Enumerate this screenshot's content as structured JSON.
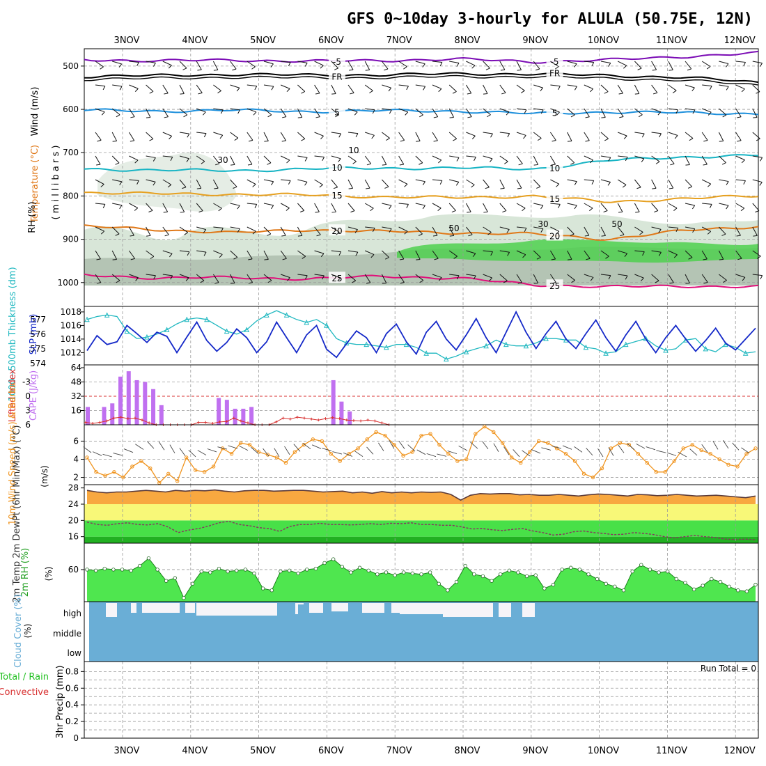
{
  "title": "GFS 0~10day 3-hourly for ALULA (50.75E, 12N)",
  "colors": {
    "purple": "#7b0cb5",
    "black": "#000000",
    "blue": "#1e90dc",
    "cyan": "#17b4c4",
    "orange_15": "#e6a020",
    "orange_20": "#e07818",
    "magenta": "#e0107a",
    "slp": "#1428c8",
    "thickness": "#20b8c0",
    "cape": "#c070f0",
    "li": "#d83030",
    "wind_speed": "#f0941e",
    "temp_fill": "#f8a840",
    "dew_band": "#f8f878",
    "green_band": "#48e048",
    "dark_green_band": "#22b022",
    "rh_fill": "#4fe64f",
    "cloud": "#6aaed6",
    "cloud_clear": "#f6f4f8",
    "humid_shade": "#c8dcc8"
  },
  "chart_data": [
    {
      "type": "contour",
      "panel": "upper-air",
      "ylabel_wind": "Wind (m/s)",
      "ylabel_temperature": "Temperature (°C)",
      "ylabel_rh": "RH (%)",
      "ylabel_pressure": "( m i l l i b a r s )",
      "yticks": [
        "500",
        "600",
        "700",
        "800",
        "900",
        "1000"
      ],
      "ylim": [
        460,
        1010
      ],
      "x_dates": [
        "3NOV",
        "4NOV",
        "5NOV",
        "6NOV",
        "7NOV",
        "8NOV",
        "9NOV",
        "10NOV",
        "11NOV",
        "12NOV"
      ],
      "isotherms": [
        {
          "label": "-5",
          "value": -5,
          "levels": [
            485,
            488,
            486,
            489,
            487,
            484,
            490,
            486,
            478,
            470
          ]
        },
        {
          "label": "FR",
          "value": 0,
          "levels": [
            524,
            522,
            519,
            521,
            520,
            518,
            518,
            522,
            526,
            538
          ]
        },
        {
          "label": "5",
          "value": 5,
          "levels": [
            602,
            604,
            602,
            605,
            603,
            604,
            610,
            606,
            608,
            610
          ]
        },
        {
          "label": "10",
          "value": 10,
          "levels": [
            738,
            740,
            742,
            737,
            736,
            735,
            738,
            718,
            710,
            706
          ]
        },
        {
          "label": "15",
          "value": 15,
          "levels": [
            792,
            795,
            796,
            798,
            802,
            804,
            800,
            814,
            806,
            800
          ]
        },
        {
          "label": "20",
          "value": 20,
          "levels": [
            870,
            878,
            885,
            878,
            882,
            885,
            888,
            900,
            880,
            870
          ]
        },
        {
          "label": "25",
          "value": 25,
          "levels": [
            982,
            990,
            988,
            992,
            985,
            990,
            1005,
            1010,
            1008,
            1010
          ]
        }
      ],
      "rh_contour_labels": [
        "10",
        "30",
        "50",
        "30",
        "50"
      ]
    },
    {
      "type": "line",
      "panel": "slp-thickness",
      "ylabel_left": "1000~500mb Thickness (dm)",
      "ylabel_right": "SLP (mb)",
      "yticks_left": [
        "574",
        "575",
        "576",
        "577"
      ],
      "yticks_right": [
        "1012",
        "1014",
        "1016",
        "1018"
      ],
      "ylim_left": [
        574,
        577.7
      ],
      "ylim_right": [
        1010.4,
        1018.4
      ],
      "series": [
        {
          "name": "SLP (mb)",
          "values": [
            1012.3,
            1014.5,
            1013.2,
            1013.6,
            1016.0,
            1014.8,
            1013.5,
            1015.0,
            1014.4,
            1012.0,
            1014.3,
            1016.5,
            1013.8,
            1012.2,
            1013.5,
            1015.5,
            1014.2,
            1012.0,
            1013.6,
            1016.5,
            1014.2,
            1012.0,
            1014.6,
            1016.0,
            1012.5,
            1011.3,
            1013.3,
            1015.2,
            1014.2,
            1012.0,
            1014.8,
            1016.2,
            1013.6,
            1011.8,
            1015.0,
            1016.6,
            1014.0,
            1012.4,
            1014.6,
            1017.0,
            1014.2,
            1012.0,
            1015.0,
            1018.0,
            1015.0,
            1012.6,
            1014.8,
            1016.6,
            1014.0,
            1012.6,
            1014.8,
            1016.8,
            1014.2,
            1012.2,
            1014.6,
            1016.6,
            1014.0,
            1012.0,
            1014.2,
            1016.0,
            1014.0,
            1012.2,
            1013.8,
            1015.6,
            1013.4,
            1012.4,
            1014.0,
            1015.6
          ]
        },
        {
          "name": "1000-500mb Thickness (dm)",
          "values": [
            577.0,
            577.2,
            577.3,
            577.2,
            576.2,
            575.7,
            575.8,
            576.0,
            576.3,
            576.7,
            577.0,
            577.1,
            577.0,
            576.6,
            576.2,
            576.0,
            576.3,
            576.9,
            577.3,
            577.6,
            577.3,
            577.0,
            576.8,
            577.0,
            576.6,
            575.7,
            575.4,
            575.3,
            575.3,
            575.2,
            575.1,
            575.3,
            575.3,
            575.1,
            574.7,
            574.7,
            574.3,
            574.5,
            574.8,
            575.0,
            575.2,
            575.6,
            575.3,
            575.2,
            575.2,
            575.4,
            575.7,
            575.7,
            575.6,
            575.6,
            575.1,
            575.0,
            574.7,
            574.8,
            575.3,
            575.5,
            575.7,
            575.2,
            574.9,
            575.0,
            575.6,
            575.7,
            575.0,
            574.8,
            575.3,
            575.1,
            574.7,
            574.8
          ]
        }
      ]
    },
    {
      "type": "bar",
      "panel": "cape-li",
      "ylabel_left": "Lifted Index",
      "ylabel_right": "CAPE (J/kg)",
      "yticks_left": [
        "-3",
        "0",
        "3",
        "6"
      ],
      "yticks_right": [
        "16",
        "32",
        "48",
        "64"
      ],
      "ylim_right": [
        0,
        64
      ],
      "ylim_left": [
        -6,
        6
      ],
      "series": [
        {
          "name": "CAPE (J/kg)",
          "values": [
            20,
            0,
            20,
            24,
            54,
            60,
            50,
            48,
            40,
            22,
            0,
            0,
            0,
            0,
            0,
            0,
            30,
            28,
            18,
            18,
            20,
            0,
            0,
            0,
            0,
            0,
            0,
            0,
            0,
            0,
            50,
            26,
            15,
            0,
            0,
            0,
            0,
            0,
            0,
            0,
            0,
            0,
            0,
            0,
            0,
            0,
            0,
            0,
            0,
            0,
            0,
            0,
            0,
            0,
            0,
            0,
            0,
            0,
            0,
            0,
            0,
            0,
            0,
            0,
            0,
            0,
            0,
            0,
            0,
            0,
            0,
            0,
            0,
            0,
            0,
            0,
            0,
            0,
            0,
            0,
            0,
            0
          ]
        },
        {
          "name": "Lifted Index",
          "values": [
            5.5,
            5.7,
            5.5,
            5.2,
            4.6,
            4.4,
            4.7,
            4.6,
            5.0,
            5.6,
            6.0,
            6.0,
            6.0,
            6.0,
            6.0,
            6.0,
            5.5,
            5.5,
            5.7,
            5.4,
            5.3,
            4.6,
            5.2,
            5.6,
            6.0,
            6.0,
            6.0,
            5.4,
            4.6,
            4.8,
            4.4,
            4.6,
            4.8,
            5.0,
            4.7,
            4.5,
            4.7,
            5.0,
            5.1,
            5.2,
            5.0,
            5.2,
            5.6,
            6.0
          ]
        }
      ]
    },
    {
      "type": "line",
      "panel": "wind",
      "ylabel": "10m Wind Speed (m/s) & Barbs",
      "yticks": [
        "2",
        "4",
        "6"
      ],
      "ylim": [
        1.2,
        7.8
      ],
      "series": [
        {
          "name": "Wind Speed (m/s)",
          "values": [
            4.2,
            2.6,
            2.2,
            2.6,
            2.0,
            3.2,
            3.8,
            3.0,
            1.4,
            2.4,
            1.6,
            4.2,
            2.8,
            2.6,
            3.2,
            5.2,
            4.6,
            5.8,
            5.6,
            4.8,
            4.5,
            4.2,
            3.6,
            4.8,
            5.6,
            6.2,
            6.0,
            4.6,
            3.8,
            4.6,
            5.2,
            6.2,
            7.0,
            6.6,
            5.6,
            4.4,
            4.8,
            6.6,
            6.8,
            5.6,
            4.6,
            3.8,
            4.0,
            6.8,
            7.6,
            7.0,
            5.8,
            4.2,
            3.6,
            4.8,
            6.0,
            5.8,
            5.2,
            4.6,
            3.8,
            2.4,
            2.0,
            3.0,
            5.2,
            5.8,
            5.6,
            4.6,
            3.6,
            2.6,
            2.6,
            3.8,
            5.2,
            5.6,
            5.0,
            4.6,
            4.0,
            3.4,
            3.2,
            4.6,
            5.2
          ]
        }
      ]
    },
    {
      "type": "area",
      "panel": "temperature",
      "ylabel": "2m Temp 2m DewPt (6hr Min/Max) (°C)",
      "yticks": [
        "16",
        "20",
        "24",
        "28"
      ],
      "ylim": [
        14.4,
        28.8
      ],
      "series": [
        {
          "name": "2m Temp",
          "values": [
            27.4,
            27.0,
            26.8,
            27.0,
            27.0,
            27.2,
            27.4,
            27.2,
            27.0,
            27.4,
            27.2,
            27.4,
            27.3,
            27.5,
            27.2,
            27.0,
            27.3,
            27.4,
            27.4,
            27.2,
            27.3,
            27.4,
            27.4,
            27.2,
            27.0,
            27.1,
            27.2,
            26.8,
            27.0,
            26.7,
            27.1,
            26.8,
            27.0,
            26.8,
            27.0,
            26.9,
            27.0,
            26.4,
            25.0,
            26.2,
            26.6,
            26.5,
            26.6,
            26.6,
            26.3,
            26.4,
            26.2,
            26.2,
            26.4,
            26.2,
            26.0,
            26.3,
            26.5,
            26.4,
            26.2,
            26.0,
            26.4,
            26.3,
            26.1,
            26.2,
            26.4,
            26.2,
            26.0,
            26.1,
            26.2,
            26.0,
            25.8,
            25.6,
            26.0
          ]
        },
        {
          "name": "2m DewPt",
          "values": [
            19.6,
            19.0,
            18.8,
            19.2,
            19.4,
            19.0,
            18.9,
            19.2,
            18.4,
            17.0,
            17.6,
            18.0,
            18.6,
            19.4,
            19.8,
            19.0,
            18.7,
            18.2,
            18.0,
            17.3,
            18.5,
            19.0,
            19.0,
            19.3,
            19.0,
            19.0,
            18.9,
            19.0,
            19.2,
            19.0,
            19.3,
            19.2,
            19.4,
            19.0,
            19.0,
            18.8,
            18.8,
            18.4,
            17.9,
            18.0,
            17.7,
            17.5,
            17.8,
            18.0,
            17.4,
            17.0,
            16.4,
            16.6,
            17.2,
            17.4,
            17.0,
            16.8,
            16.5,
            16.6,
            17.0,
            16.8,
            16.5,
            16.0,
            15.7,
            16.0,
            16.3,
            16.0,
            15.8,
            15.4,
            15.3,
            15.4,
            15.2
          ]
        }
      ]
    },
    {
      "type": "area",
      "panel": "rh",
      "ylabel": "2m RH (%)",
      "yticks": [
        "60"
      ],
      "ylim": [
        26,
        88
      ],
      "series": [
        {
          "name": "2m RH (%)",
          "values": [
            60,
            59,
            61,
            60,
            60,
            59,
            64,
            72,
            60,
            48,
            51,
            30,
            45,
            58,
            57,
            61,
            58,
            59,
            60,
            56,
            40,
            38,
            58,
            59,
            56,
            60,
            61,
            67,
            71,
            63,
            57,
            62,
            59,
            55,
            57,
            54,
            57,
            56,
            55,
            57,
            45,
            38,
            47,
            64,
            55,
            53,
            48,
            55,
            59,
            57,
            53,
            54,
            40,
            44,
            60,
            62,
            60,
            55,
            50,
            45,
            42,
            38,
            58,
            65,
            60,
            57,
            58,
            50,
            46,
            39,
            43,
            50,
            47,
            42,
            38,
            37,
            44
          ]
        }
      ]
    },
    {
      "type": "heatmap",
      "panel": "cloud",
      "ylabel": "Cloud Cover (%)",
      "yticks": [
        "high",
        "middle",
        "low"
      ],
      "layers": [
        "high",
        "middle",
        "low"
      ]
    },
    {
      "type": "bar",
      "panel": "precip",
      "ylabel_left": "Total / Rain",
      "ylabel_left2": "Convective",
      "ylabel": "3hr Precip (mm)",
      "yticks": [
        "0",
        "0.2",
        "0.4",
        "0.6",
        "0.8"
      ],
      "ylim": [
        0,
        0.92
      ],
      "values": [],
      "annotation": "Run Total = 0"
    }
  ]
}
